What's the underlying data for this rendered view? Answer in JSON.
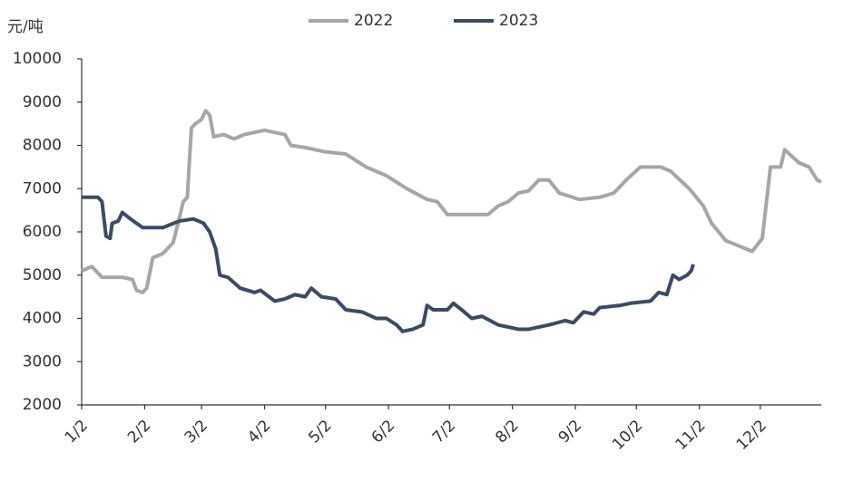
{
  "chart_data": {
    "type": "line",
    "y_label": "元/吨",
    "xlim": [
      0,
      364
    ],
    "xticks": [
      {
        "value": 0,
        "label": "1/2"
      },
      {
        "value": 31,
        "label": "2/2"
      },
      {
        "value": 59,
        "label": "3/2"
      },
      {
        "value": 90,
        "label": "4/2"
      },
      {
        "value": 120,
        "label": "5/2"
      },
      {
        "value": 151,
        "label": "6/2"
      },
      {
        "value": 181,
        "label": "7/2"
      },
      {
        "value": 212,
        "label": "8/2"
      },
      {
        "value": 243,
        "label": "9/2"
      },
      {
        "value": 273,
        "label": "10/2"
      },
      {
        "value": 304,
        "label": "11/2"
      },
      {
        "value": 334,
        "label": "12/2"
      }
    ],
    "ylim": [
      2000,
      10000
    ],
    "yticks": [
      2000,
      3000,
      4000,
      5000,
      6000,
      7000,
      8000,
      9000,
      10000
    ],
    "legend": "top",
    "series": [
      {
        "name": "2022",
        "color": "#a6a6a6",
        "x": [
          0,
          5,
          10,
          20,
          25,
          27,
          30,
          32,
          35,
          40,
          45,
          48,
          50,
          52,
          54,
          56,
          59,
          61,
          63,
          65,
          70,
          75,
          80,
          90,
          95,
          100,
          103,
          110,
          120,
          130,
          140,
          150,
          160,
          170,
          175,
          180,
          190,
          200,
          205,
          210,
          215,
          220,
          225,
          230,
          235,
          245,
          255,
          262,
          268,
          275,
          285,
          290,
          299,
          306,
          310,
          317,
          330,
          335,
          339,
          344,
          346,
          353,
          358,
          362,
          364
        ],
        "values": [
          5100,
          5200,
          4950,
          4950,
          4900,
          4650,
          4600,
          4700,
          5400,
          5500,
          5750,
          6300,
          6700,
          6800,
          8400,
          8500,
          8600,
          8800,
          8700,
          8200,
          8250,
          8150,
          8250,
          8350,
          8300,
          8250,
          8000,
          7950,
          7850,
          7800,
          7500,
          7300,
          7000,
          6750,
          6700,
          6400,
          6400,
          6400,
          6600,
          6700,
          6900,
          6950,
          7200,
          7200,
          6900,
          6750,
          6800,
          6900,
          7200,
          7500,
          7500,
          7400,
          7000,
          6600,
          6200,
          5800,
          5550,
          5850,
          7500,
          7500,
          7900,
          7600,
          7500,
          7200,
          7150
        ]
      },
      {
        "name": "2023",
        "color": "#3b4b66",
        "x": [
          0,
          8,
          10,
          12,
          14,
          15,
          18,
          20,
          24,
          30,
          40,
          48,
          55,
          60,
          63,
          66,
          68,
          72,
          78,
          85,
          88,
          95,
          100,
          105,
          110,
          113,
          118,
          125,
          130,
          138,
          145,
          150,
          155,
          158,
          163,
          168,
          170,
          173,
          180,
          183,
          187,
          192,
          197,
          205,
          215,
          220,
          230,
          238,
          242,
          247,
          252,
          255,
          265,
          270,
          280,
          284,
          288,
          291,
          294,
          298,
          300,
          301
        ],
        "values": [
          6800,
          6800,
          6700,
          5900,
          5850,
          6200,
          6250,
          6450,
          6300,
          6100,
          6100,
          6250,
          6300,
          6200,
          6000,
          5600,
          5000,
          4950,
          4700,
          4600,
          4650,
          4400,
          4450,
          4550,
          4500,
          4700,
          4500,
          4450,
          4200,
          4150,
          4000,
          4000,
          3850,
          3700,
          3750,
          3850,
          4300,
          4200,
          4200,
          4350,
          4200,
          4000,
          4050,
          3850,
          3750,
          3750,
          3850,
          3950,
          3900,
          4150,
          4100,
          4250,
          4300,
          4350,
          4400,
          4600,
          4550,
          5000,
          4900,
          5000,
          5100,
          5250
        ]
      }
    ]
  }
}
